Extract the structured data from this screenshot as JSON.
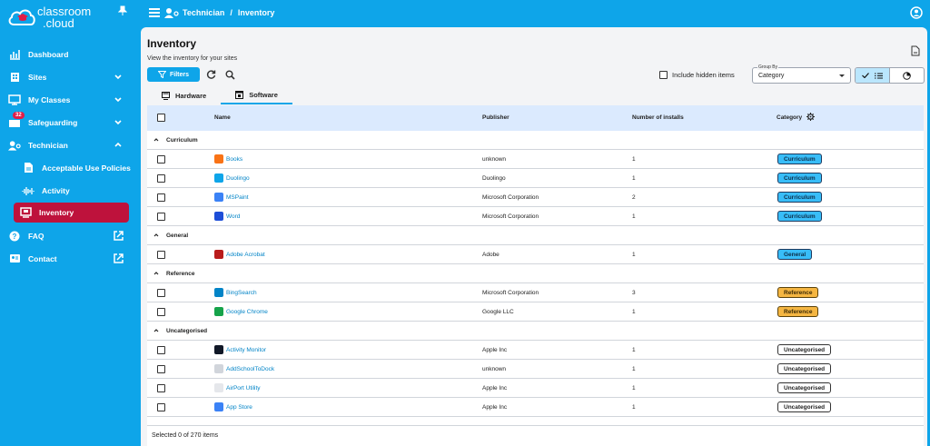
{
  "app": {
    "logo_line1": "classroom",
    "logo_line2": ".cloud"
  },
  "sidebar": {
    "items": [
      {
        "label": "Dashboard",
        "icon": "dashboard-icon"
      },
      {
        "label": "Sites",
        "icon": "building-icon"
      },
      {
        "label": "My Classes",
        "icon": "classes-icon"
      },
      {
        "label": "Safeguarding",
        "icon": "safeguarding-icon",
        "badge": "32"
      },
      {
        "label": "Technician",
        "icon": "technician-icon"
      },
      {
        "label": "Acceptable Use Policies",
        "icon": "policy-icon"
      },
      {
        "label": "Activity",
        "icon": "activity-icon"
      },
      {
        "label": "Inventory",
        "icon": "inventory-icon"
      },
      {
        "label": "FAQ",
        "icon": "help-icon"
      },
      {
        "label": "Contact",
        "icon": "contact-icon"
      }
    ]
  },
  "topbar": {
    "crumb1": "Technician",
    "crumb_sep": "/",
    "crumb2": "Inventory"
  },
  "page": {
    "title": "Inventory",
    "subtitle": "View the inventory for your sites",
    "filters_label": "Filters",
    "include_hidden_label": "Include hidden items",
    "group_by_label": "Group By",
    "group_by_value": "Category"
  },
  "tabs": [
    {
      "label": "Hardware"
    },
    {
      "label": "Software"
    }
  ],
  "table": {
    "headers": {
      "name": "Name",
      "publisher": "Publisher",
      "installs": "Number of installs",
      "category": "Category"
    },
    "groups": [
      {
        "name": "Curriculum",
        "rows": [
          {
            "name": "Books",
            "publisher": "unknown",
            "installs": "1",
            "category": "Curriculum",
            "color": "#f97316"
          },
          {
            "name": "Duolingo",
            "publisher": "Duolingo",
            "installs": "1",
            "category": "Curriculum",
            "color": "#0ea5e9"
          },
          {
            "name": "MSPaint",
            "publisher": "Microsoft Corporation",
            "installs": "2",
            "category": "Curriculum",
            "color": "#3b82f6"
          },
          {
            "name": "Word",
            "publisher": "Microsoft Corporation",
            "installs": "1",
            "category": "Curriculum",
            "color": "#1d4ed8"
          }
        ]
      },
      {
        "name": "General",
        "rows": [
          {
            "name": "Adobe Acrobat",
            "publisher": "Adobe",
            "installs": "1",
            "category": "General",
            "color": "#b91c1c"
          }
        ]
      },
      {
        "name": "Reference",
        "rows": [
          {
            "name": "BingSearch",
            "publisher": "Microsoft Corporation",
            "installs": "3",
            "category": "Reference",
            "color": "#0284c7"
          },
          {
            "name": "Google Chrome",
            "publisher": "Google LLC",
            "installs": "1",
            "category": "Reference",
            "color": "#16a34a"
          }
        ]
      },
      {
        "name": "Uncategorised",
        "rows": [
          {
            "name": "Activity Monitor",
            "publisher": "Apple Inc",
            "installs": "1",
            "category": "Uncategorised",
            "color": "#111827"
          },
          {
            "name": "AddSchoolToDock",
            "publisher": "unknown",
            "installs": "1",
            "category": "Uncategorised",
            "color": "#d1d5db"
          },
          {
            "name": "AirPort Utility",
            "publisher": "Apple Inc",
            "installs": "1",
            "category": "Uncategorised",
            "color": "#e5e7eb"
          },
          {
            "name": "App Store",
            "publisher": "Apple Inc",
            "installs": "1",
            "category": "Uncategorised",
            "color": "#3b82f6"
          }
        ]
      }
    ]
  },
  "footer": {
    "selection": "Selected 0 of 270 items"
  }
}
